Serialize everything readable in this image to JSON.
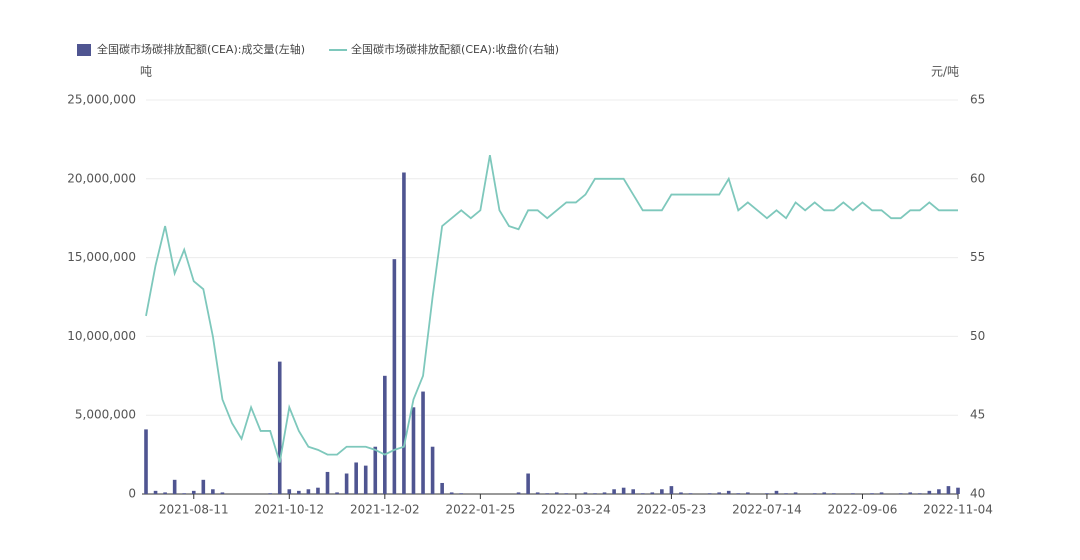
{
  "chart_data": {
    "type": "bar",
    "y_unit": "吨",
    "y2_unit": "元/吨",
    "categories": [
      null,
      null,
      null,
      null,
      null,
      "2021-08-11",
      null,
      null,
      null,
      null,
      null,
      null,
      null,
      null,
      null,
      "2021-10-12",
      null,
      null,
      null,
      null,
      null,
      null,
      null,
      null,
      null,
      "2021-12-02",
      null,
      null,
      null,
      null,
      null,
      null,
      null,
      null,
      null,
      "2022-01-25",
      null,
      null,
      null,
      null,
      null,
      null,
      null,
      null,
      null,
      "2022-03-24",
      null,
      null,
      null,
      null,
      null,
      null,
      null,
      null,
      null,
      "2022-05-23",
      null,
      null,
      null,
      null,
      null,
      null,
      null,
      null,
      null,
      "2022-07-14",
      null,
      null,
      null,
      null,
      null,
      null,
      null,
      null,
      null,
      "2022-09-06",
      null,
      null,
      null,
      null,
      null,
      null,
      null,
      null,
      null,
      "2022-11-04"
    ],
    "series": [
      {
        "name": "全国碳市场碳排放配额(CEA):成交量(左轴)",
        "type": "bar",
        "color": "#4f5591",
        "values": [
          4100000,
          200000,
          100000,
          900000,
          50000,
          200000,
          900000,
          300000,
          100000,
          0,
          0,
          0,
          0,
          50000,
          8400000,
          300000,
          200000,
          300000,
          400000,
          1400000,
          100000,
          1300000,
          2000000,
          1800000,
          3000000,
          7500000,
          14900000,
          20400000,
          5500000,
          6500000,
          3000000,
          700000,
          100000,
          50000,
          0,
          0,
          0,
          0,
          0,
          100000,
          1300000,
          100000,
          50000,
          100000,
          50000,
          0,
          100000,
          50000,
          100000,
          300000,
          400000,
          300000,
          50000,
          100000,
          300000,
          500000,
          100000,
          50000,
          0,
          50000,
          100000,
          200000,
          50000,
          100000,
          0,
          50000,
          200000,
          50000,
          100000,
          0,
          50000,
          100000,
          50000,
          0,
          50000,
          0,
          50000,
          100000,
          0,
          50000,
          100000,
          50000,
          200000,
          300000,
          500000,
          400000
        ]
      },
      {
        "name": "全国碳市场碳排放配额(CEA):收盘价(右轴)",
        "type": "line",
        "axis": "y2",
        "color": "#7ec8bc",
        "values": [
          51.3,
          54.5,
          57,
          54,
          55.5,
          53.5,
          53,
          50,
          46,
          44.5,
          43.5,
          45.5,
          44,
          44,
          42,
          45.5,
          44,
          43,
          42.8,
          42.5,
          42.5,
          43,
          43,
          43,
          42.8,
          42.5,
          42.8,
          43,
          46,
          47.5,
          52.5,
          57,
          57.5,
          58,
          57.5,
          58,
          61.5,
          58,
          57,
          56.8,
          58,
          58,
          57.5,
          58,
          58.5,
          58.5,
          59,
          60,
          60,
          60,
          60,
          59,
          58,
          58,
          58,
          59,
          59,
          59,
          59,
          59,
          59,
          60,
          58,
          58.5,
          58,
          57.5,
          58,
          57.5,
          58.5,
          58,
          58.5,
          58,
          58,
          58.5,
          58,
          58.5,
          58,
          58,
          57.5,
          57.5,
          58,
          58,
          58.5,
          58,
          58,
          58
        ]
      }
    ],
    "ylim": [
      0,
      25000000
    ],
    "yticks": [
      {
        "value": 0,
        "label": "0"
      },
      {
        "value": 5000000,
        "label": "5,000,000"
      },
      {
        "value": 10000000,
        "label": "10,000,000"
      },
      {
        "value": 15000000,
        "label": "15,000,000"
      },
      {
        "value": 20000000,
        "label": "20,000,000"
      },
      {
        "value": 25000000,
        "label": "25,000,000"
      }
    ],
    "y2lim": [
      40,
      65
    ],
    "y2ticks": [
      40,
      45,
      50,
      55,
      60,
      65
    ],
    "grid": true
  }
}
